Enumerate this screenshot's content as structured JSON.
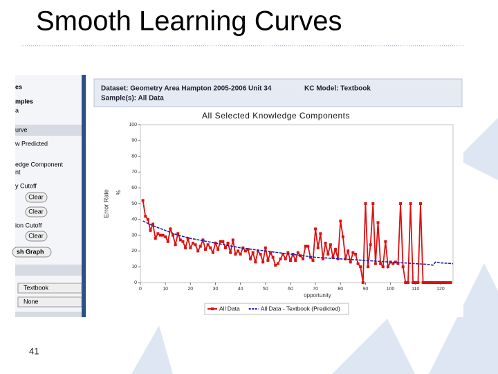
{
  "slide": {
    "title": "Smooth Learning Curves",
    "page_number": "41"
  },
  "sidebar": {
    "items": [
      "es",
      "mples",
      "a",
      "urve",
      "w Predicted",
      "edge Component",
      "nt",
      "y Cutoff",
      "Clear",
      "Clear",
      "ion Cutoff",
      "Clear",
      "sh Graph",
      "Textbook",
      "None"
    ]
  },
  "header": {
    "dataset": "Dataset: Geometry Area Hampton 2005-2006 Unit 34",
    "kc_model": "KC Model: Textbook",
    "samples": "Sample(s): All Data"
  },
  "chart_data": {
    "type": "line",
    "title": "All Selected Knowledge Components",
    "x_label": "opportunity",
    "y_label": "Error Rate",
    "y_unit": "%",
    "xlim": [
      0,
      125
    ],
    "xticks": [
      0,
      10,
      20,
      30,
      40,
      50,
      60,
      70,
      80,
      90,
      100,
      110,
      120
    ],
    "ylim": [
      0,
      100
    ],
    "yticks": [
      0,
      10,
      20,
      30,
      40,
      50,
      60,
      70,
      80,
      90,
      100
    ],
    "series": [
      {
        "name": "All Data",
        "color": "#dd1111",
        "markers": true,
        "x": [
          1,
          2,
          3,
          4,
          5,
          6,
          7,
          8,
          9,
          10,
          11,
          12,
          13,
          14,
          15,
          16,
          17,
          18,
          19,
          20,
          21,
          22,
          23,
          24,
          25,
          26,
          27,
          28,
          29,
          30,
          31,
          32,
          33,
          34,
          35,
          36,
          37,
          38,
          39,
          40,
          41,
          42,
          43,
          44,
          45,
          46,
          47,
          48,
          49,
          50,
          51,
          52,
          53,
          54,
          55,
          56,
          57,
          58,
          59,
          60,
          61,
          62,
          63,
          64,
          65,
          66,
          67,
          68,
          69,
          70,
          71,
          72,
          73,
          74,
          75,
          76,
          77,
          78,
          79,
          80,
          81,
          82,
          83,
          84,
          85,
          86,
          87,
          88,
          89,
          90,
          91,
          92,
          93,
          94,
          95,
          96,
          97,
          98,
          99,
          100,
          101,
          102,
          103,
          104,
          105,
          106,
          107,
          108,
          109,
          110,
          111,
          112,
          113,
          114,
          115,
          116,
          117,
          118,
          119,
          120,
          121,
          122,
          123,
          124
        ],
        "values": [
          52,
          42,
          40,
          33,
          37,
          28,
          31,
          30,
          30,
          29,
          26,
          34,
          30,
          24,
          31,
          27,
          26,
          22,
          28,
          22,
          25,
          24,
          20,
          23,
          27,
          21,
          24,
          22,
          19,
          25,
          21,
          26,
          26,
          22,
          25,
          19,
          27,
          18,
          20,
          18,
          22,
          20,
          21,
          15,
          19,
          13,
          20,
          18,
          13,
          22,
          14,
          19,
          16,
          11,
          12,
          15,
          18,
          15,
          19,
          14,
          18,
          14,
          19,
          17,
          15,
          23,
          23,
          16,
          14,
          34,
          22,
          31,
          15,
          25,
          18,
          24,
          16,
          21,
          15,
          39,
          29,
          15,
          20,
          13,
          19,
          18,
          12,
          10,
          0,
          50,
          10,
          24,
          50,
          12,
          38,
          12,
          10,
          26,
          10,
          13,
          12,
          13,
          12,
          50,
          10,
          0,
          0,
          50,
          0,
          0,
          0,
          50,
          0,
          0,
          0,
          0,
          0,
          0,
          0,
          0,
          0,
          0,
          0,
          0
        ]
      },
      {
        "name": "All Data - Textbook (Predicted)",
        "color": "#2222aa",
        "dashed": true,
        "x": [
          1,
          5,
          10,
          15,
          20,
          25,
          30,
          35,
          40,
          45,
          50,
          55,
          60,
          65,
          70,
          75,
          80,
          85,
          90,
          95,
          100,
          105,
          110,
          115,
          117,
          118,
          120,
          125
        ],
        "values": [
          39,
          36,
          33,
          30,
          28,
          26.5,
          25,
          23.5,
          22,
          21,
          20,
          19,
          18,
          17,
          16,
          15.5,
          15,
          14.5,
          14,
          13.5,
          13,
          12.5,
          12,
          11.5,
          11,
          13,
          12.5,
          12
        ]
      }
    ]
  }
}
